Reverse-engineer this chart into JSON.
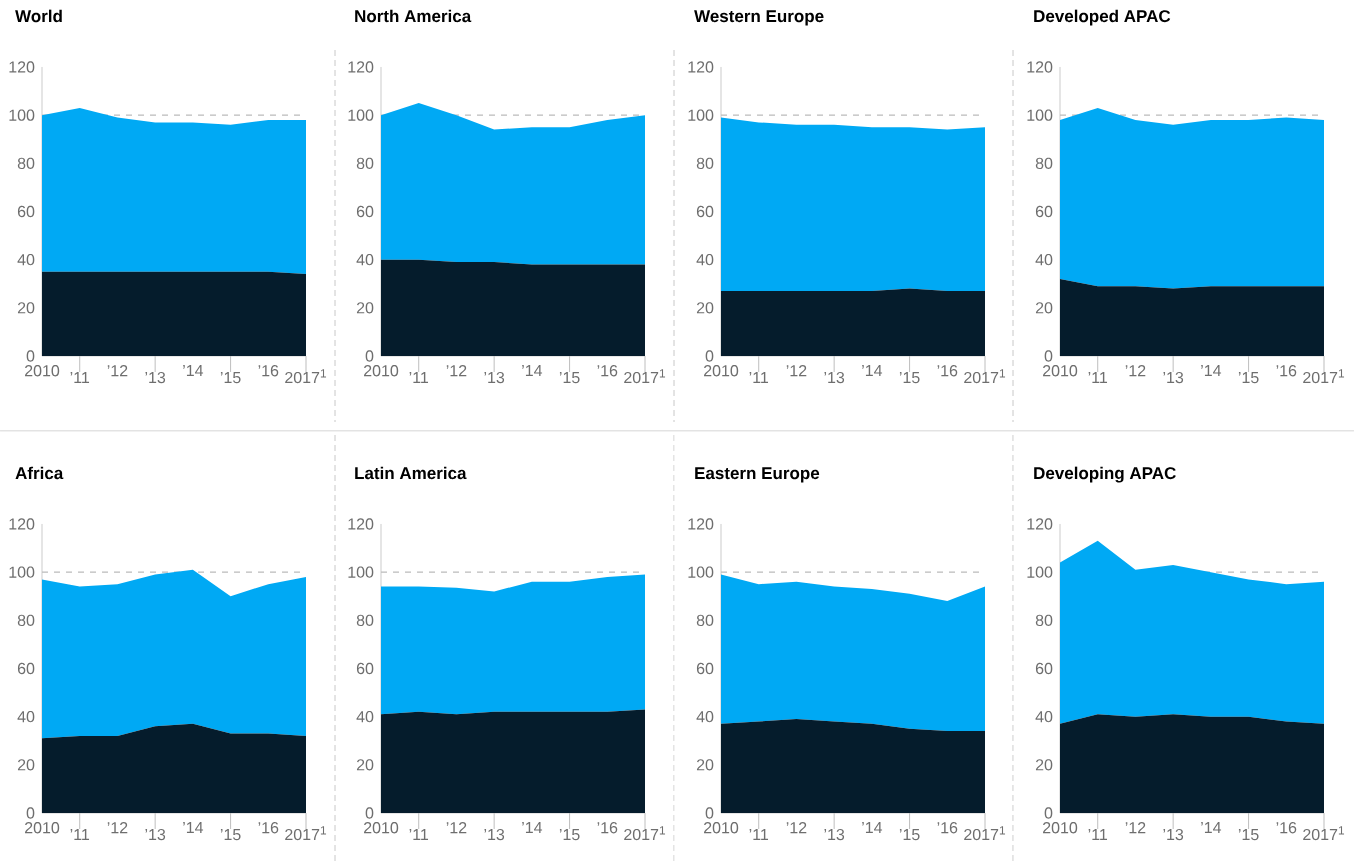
{
  "chart_data": [
    {
      "type": "area",
      "stacked": true,
      "title": "World",
      "categories": [
        "2010",
        "’11",
        "’12",
        "’13",
        "’14",
        "’15",
        "’16",
        "2017$^{1}$"
      ],
      "ylim": [
        0,
        120
      ],
      "yticks": [
        0,
        20,
        40,
        60,
        80,
        100,
        120
      ],
      "ref_lines": [
        {
          "axis": "y",
          "value": 100,
          "color": "#bbbbbb",
          "line_style": "dashed"
        }
      ],
      "series": [
        {
          "color": "#051c2c",
          "values": [
            35,
            35,
            35,
            35,
            35,
            35,
            35,
            34
          ]
        },
        {
          "color": "#00a9f4",
          "values": [
            65,
            68,
            64,
            62,
            62,
            61,
            63,
            64
          ]
        }
      ]
    },
    {
      "type": "area",
      "stacked": true,
      "title": "North America",
      "categories": [
        "2010",
        "’11",
        "’12",
        "’13",
        "’14",
        "’15",
        "’16",
        "2017$^{1}$"
      ],
      "ylim": [
        0,
        120
      ],
      "yticks": [
        0,
        20,
        40,
        60,
        80,
        100,
        120
      ],
      "ref_lines": [
        {
          "axis": "y",
          "value": 100,
          "color": "#bbbbbb",
          "line_style": "dashed"
        }
      ],
      "series": [
        {
          "color": "#051c2c",
          "values": [
            40,
            40,
            39,
            39,
            38,
            38,
            38,
            38
          ]
        },
        {
          "color": "#00a9f4",
          "values": [
            60,
            65,
            61,
            55,
            57,
            57,
            60,
            62
          ]
        }
      ]
    },
    {
      "type": "area",
      "stacked": true,
      "title": "Western Europe",
      "categories": [
        "2010",
        "’11",
        "’12",
        "’13",
        "’14",
        "’15",
        "’16",
        "2017$^{1}$"
      ],
      "ylim": [
        0,
        120
      ],
      "yticks": [
        0,
        20,
        40,
        60,
        80,
        100,
        120
      ],
      "ref_lines": [
        {
          "axis": "y",
          "value": 100,
          "color": "#bbbbbb",
          "line_style": "dashed"
        }
      ],
      "series": [
        {
          "color": "#051c2c",
          "values": [
            27,
            27,
            27,
            27,
            27,
            28,
            27,
            27
          ]
        },
        {
          "color": "#00a9f4",
          "values": [
            72,
            70,
            69,
            69,
            68,
            67,
            67,
            68
          ]
        }
      ]
    },
    {
      "type": "area",
      "stacked": true,
      "title": "Developed APAC",
      "categories": [
        "2010",
        "’11",
        "’12",
        "’13",
        "’14",
        "’15",
        "’16",
        "2017$^{1}$"
      ],
      "ylim": [
        0,
        120
      ],
      "yticks": [
        0,
        20,
        40,
        60,
        80,
        100,
        120
      ],
      "ref_lines": [
        {
          "axis": "y",
          "value": 100,
          "color": "#bbbbbb",
          "line_style": "dashed"
        }
      ],
      "series": [
        {
          "color": "#051c2c",
          "values": [
            32,
            29,
            29,
            28,
            29,
            29,
            29,
            29
          ]
        },
        {
          "color": "#00a9f4",
          "values": [
            66,
            74,
            69,
            68,
            69,
            69,
            70,
            69
          ]
        }
      ]
    },
    {
      "type": "area",
      "stacked": true,
      "title": "Africa",
      "categories": [
        "2010",
        "’11",
        "’12",
        "’13",
        "’14",
        "’15",
        "’16",
        "2017$^{1}$"
      ],
      "ylim": [
        0,
        120
      ],
      "yticks": [
        0,
        20,
        40,
        60,
        80,
        100,
        120
      ],
      "ref_lines": [
        {
          "axis": "y",
          "value": 100,
          "color": "#bbbbbb",
          "line_style": "dashed"
        }
      ],
      "series": [
        {
          "color": "#051c2c",
          "values": [
            31,
            32,
            32,
            36,
            37,
            33,
            33,
            32
          ]
        },
        {
          "color": "#00a9f4",
          "values": [
            66,
            62,
            63,
            63,
            64,
            57,
            62,
            66
          ]
        }
      ]
    },
    {
      "type": "area",
      "stacked": true,
      "title": "Latin America",
      "categories": [
        "2010",
        "’11",
        "’12",
        "’13",
        "’14",
        "’15",
        "’16",
        "2017$^{1}$"
      ],
      "ylim": [
        0,
        120
      ],
      "yticks": [
        0,
        20,
        40,
        60,
        80,
        100,
        120
      ],
      "ref_lines": [
        {
          "axis": "y",
          "value": 100,
          "color": "#bbbbbb",
          "line_style": "dashed"
        }
      ],
      "series": [
        {
          "color": "#051c2c",
          "values": [
            41,
            42,
            41,
            42,
            42,
            42,
            42,
            43
          ]
        },
        {
          "color": "#00a9f4",
          "values": [
            53,
            52,
            52.5,
            50,
            54,
            54,
            56,
            56
          ]
        }
      ]
    },
    {
      "type": "area",
      "stacked": true,
      "title": "Eastern Europe",
      "categories": [
        "2010",
        "’11",
        "’12",
        "’13",
        "’14",
        "’15",
        "’16",
        "2017$^{1}$"
      ],
      "ylim": [
        0,
        120
      ],
      "yticks": [
        0,
        20,
        40,
        60,
        80,
        100,
        120
      ],
      "ref_lines": [
        {
          "axis": "y",
          "value": 100,
          "color": "#bbbbbb",
          "line_style": "dashed"
        }
      ],
      "series": [
        {
          "color": "#051c2c",
          "values": [
            37,
            38,
            39,
            38,
            37,
            35,
            34,
            34
          ]
        },
        {
          "color": "#00a9f4",
          "values": [
            62,
            57,
            57,
            56,
            56,
            56,
            54,
            60
          ]
        }
      ]
    },
    {
      "type": "area",
      "stacked": true,
      "title": "Developing APAC",
      "categories": [
        "2010",
        "’11",
        "’12",
        "’13",
        "’14",
        "’15",
        "’16",
        "2017$^{1}$"
      ],
      "ylim": [
        0,
        120
      ],
      "yticks": [
        0,
        20,
        40,
        60,
        80,
        100,
        120
      ],
      "ref_lines": [
        {
          "axis": "y",
          "value": 100,
          "color": "#bbbbbb",
          "line_style": "dashed"
        }
      ],
      "series": [
        {
          "color": "#051c2c",
          "values": [
            37,
            41,
            40,
            41,
            40,
            40,
            38,
            37
          ]
        },
        {
          "color": "#00a9f4",
          "values": [
            67,
            72,
            61,
            62,
            60,
            57,
            57,
            59
          ]
        }
      ]
    }
  ]
}
